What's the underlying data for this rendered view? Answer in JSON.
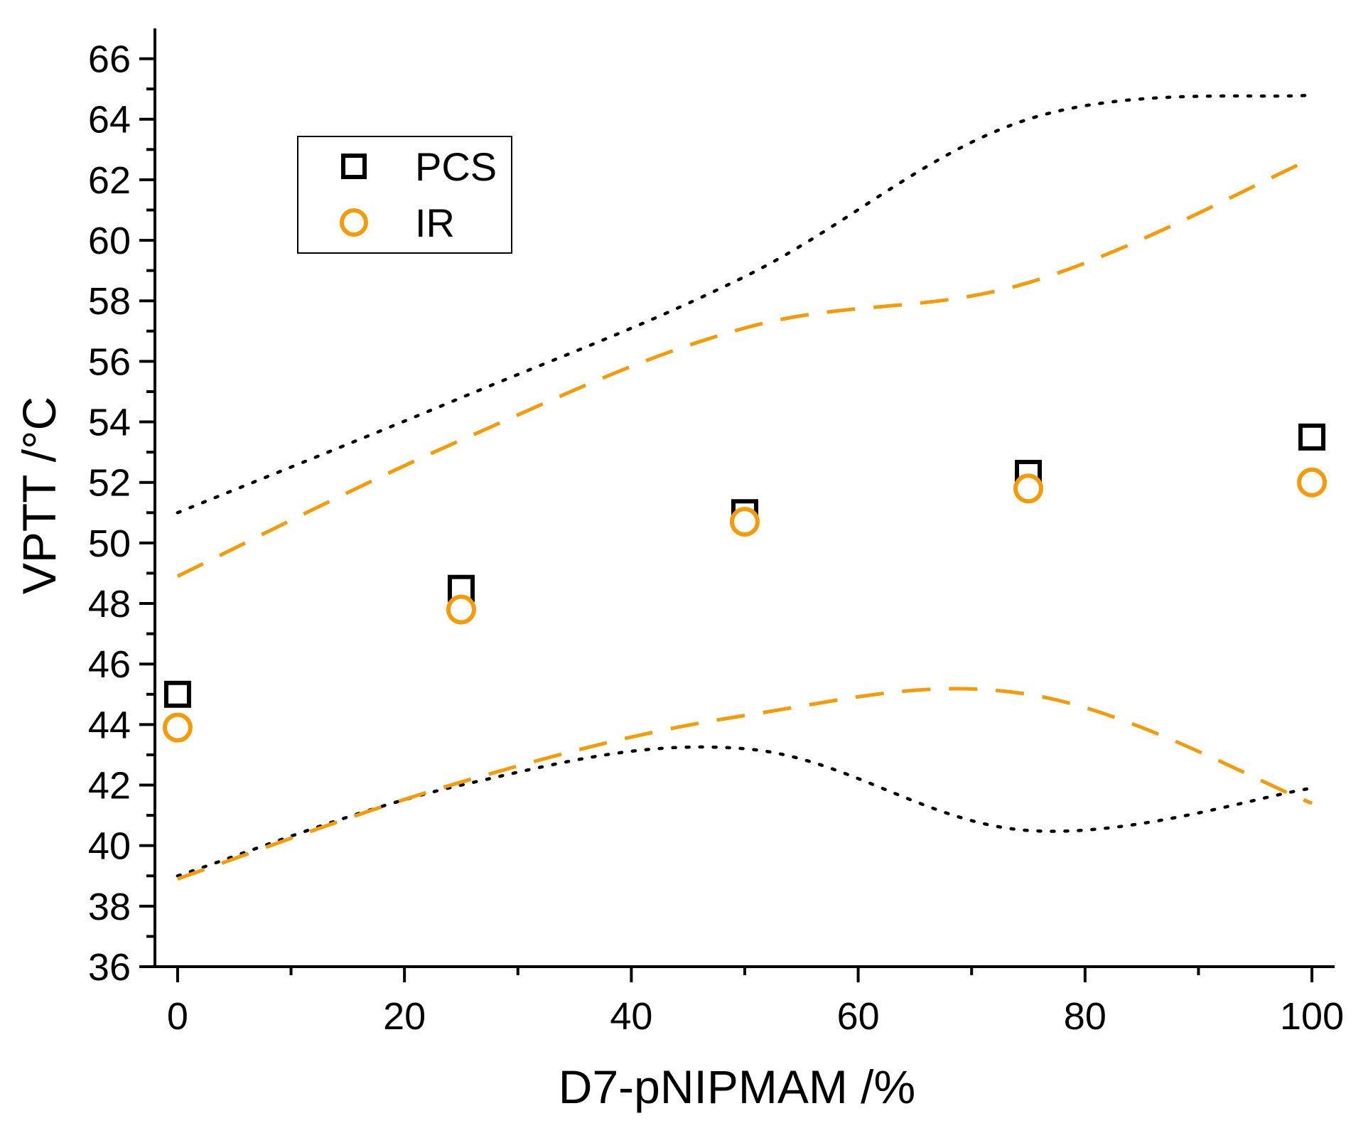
{
  "chart_data": {
    "type": "scatter",
    "title": "",
    "xlabel": "D7-pNIPMAM /%",
    "ylabel": "VPTT /°C",
    "xlim": [
      -2,
      102
    ],
    "ylim": [
      36,
      67
    ],
    "x_ticks": [
      {
        "value": 0,
        "label": "0"
      },
      {
        "value": 20,
        "label": "20"
      },
      {
        "value": 40,
        "label": "40"
      },
      {
        "value": 60,
        "label": "60"
      },
      {
        "value": 80,
        "label": "80"
      },
      {
        "value": 100,
        "label": "100"
      }
    ],
    "x_minor_ticks": [
      10,
      30,
      50,
      70,
      90
    ],
    "y_ticks": [
      {
        "value": 36,
        "label": "36"
      },
      {
        "value": 38,
        "label": "38"
      },
      {
        "value": 40,
        "label": "40"
      },
      {
        "value": 42,
        "label": "42"
      },
      {
        "value": 44,
        "label": "44"
      },
      {
        "value": 46,
        "label": "46"
      },
      {
        "value": 48,
        "label": "48"
      },
      {
        "value": 50,
        "label": "50"
      },
      {
        "value": 52,
        "label": "52"
      },
      {
        "value": 54,
        "label": "54"
      },
      {
        "value": 56,
        "label": "56"
      },
      {
        "value": 58,
        "label": "58"
      },
      {
        "value": 60,
        "label": "60"
      },
      {
        "value": 62,
        "label": "62"
      },
      {
        "value": 64,
        "label": "64"
      },
      {
        "value": 66,
        "label": "66"
      }
    ],
    "y_minor_ticks": [
      37,
      39,
      41,
      43,
      45,
      47,
      49,
      51,
      53,
      55,
      57,
      59,
      61,
      63,
      65
    ],
    "grid": false,
    "legend_position": "top-left",
    "series": [
      {
        "name": "PCS",
        "marker": "square",
        "color": "#000000",
        "x": [
          0,
          25,
          50,
          75,
          100
        ],
        "y": [
          45.0,
          48.5,
          51.0,
          52.3,
          53.5
        ]
      },
      {
        "name": "IR",
        "marker": "circle",
        "color": "#F59B0A",
        "x": [
          0,
          25,
          50,
          75,
          100
        ],
        "y": [
          43.9,
          47.8,
          50.7,
          51.8,
          52.0
        ]
      }
    ],
    "range_lines": [
      {
        "name": "PCS upper bound",
        "style": "dotted",
        "color": "#000000",
        "x": [
          0,
          25,
          50,
          75,
          100
        ],
        "y": [
          51.0,
          54.8,
          58.8,
          64.0,
          64.8
        ]
      },
      {
        "name": "PCS lower bound",
        "style": "dotted",
        "color": "#000000",
        "x": [
          0,
          25,
          50,
          75,
          100
        ],
        "y": [
          39.0,
          42.0,
          43.2,
          40.5,
          41.9
        ]
      },
      {
        "name": "IR upper bound",
        "style": "dashed",
        "color": "#F59B0A",
        "x": [
          0,
          25,
          50,
          75,
          100
        ],
        "y": [
          48.9,
          53.4,
          57.1,
          58.6,
          62.7
        ]
      },
      {
        "name": "IR lower bound",
        "style": "dashed",
        "color": "#F59B0A",
        "x": [
          0,
          25,
          50,
          75,
          100
        ],
        "y": [
          38.9,
          42.1,
          44.3,
          45.0,
          41.4
        ]
      }
    ]
  }
}
